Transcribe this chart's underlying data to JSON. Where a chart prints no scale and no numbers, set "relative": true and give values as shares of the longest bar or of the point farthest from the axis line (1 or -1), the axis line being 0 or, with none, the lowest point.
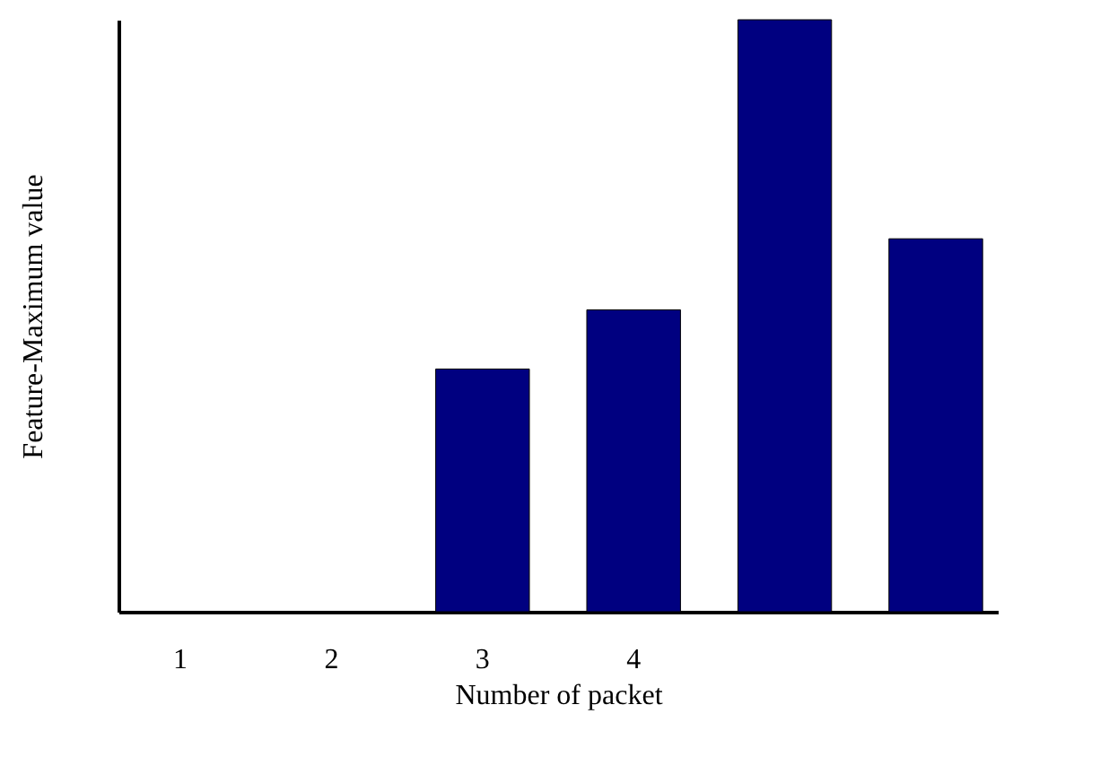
{
  "chart_data": {
    "type": "bar",
    "xlabel": "Number of packet",
    "ylabel": "Feature-Maximum value",
    "categories": [
      "1",
      "2",
      "3",
      "4",
      null,
      null
    ],
    "series": [
      {
        "color": "#000080",
        "values": [
          null,
          null,
          0.41,
          0.51,
          1,
          0.63
        ]
      }
    ],
    "relative": true,
    "grid": false,
    "legend": false
  }
}
